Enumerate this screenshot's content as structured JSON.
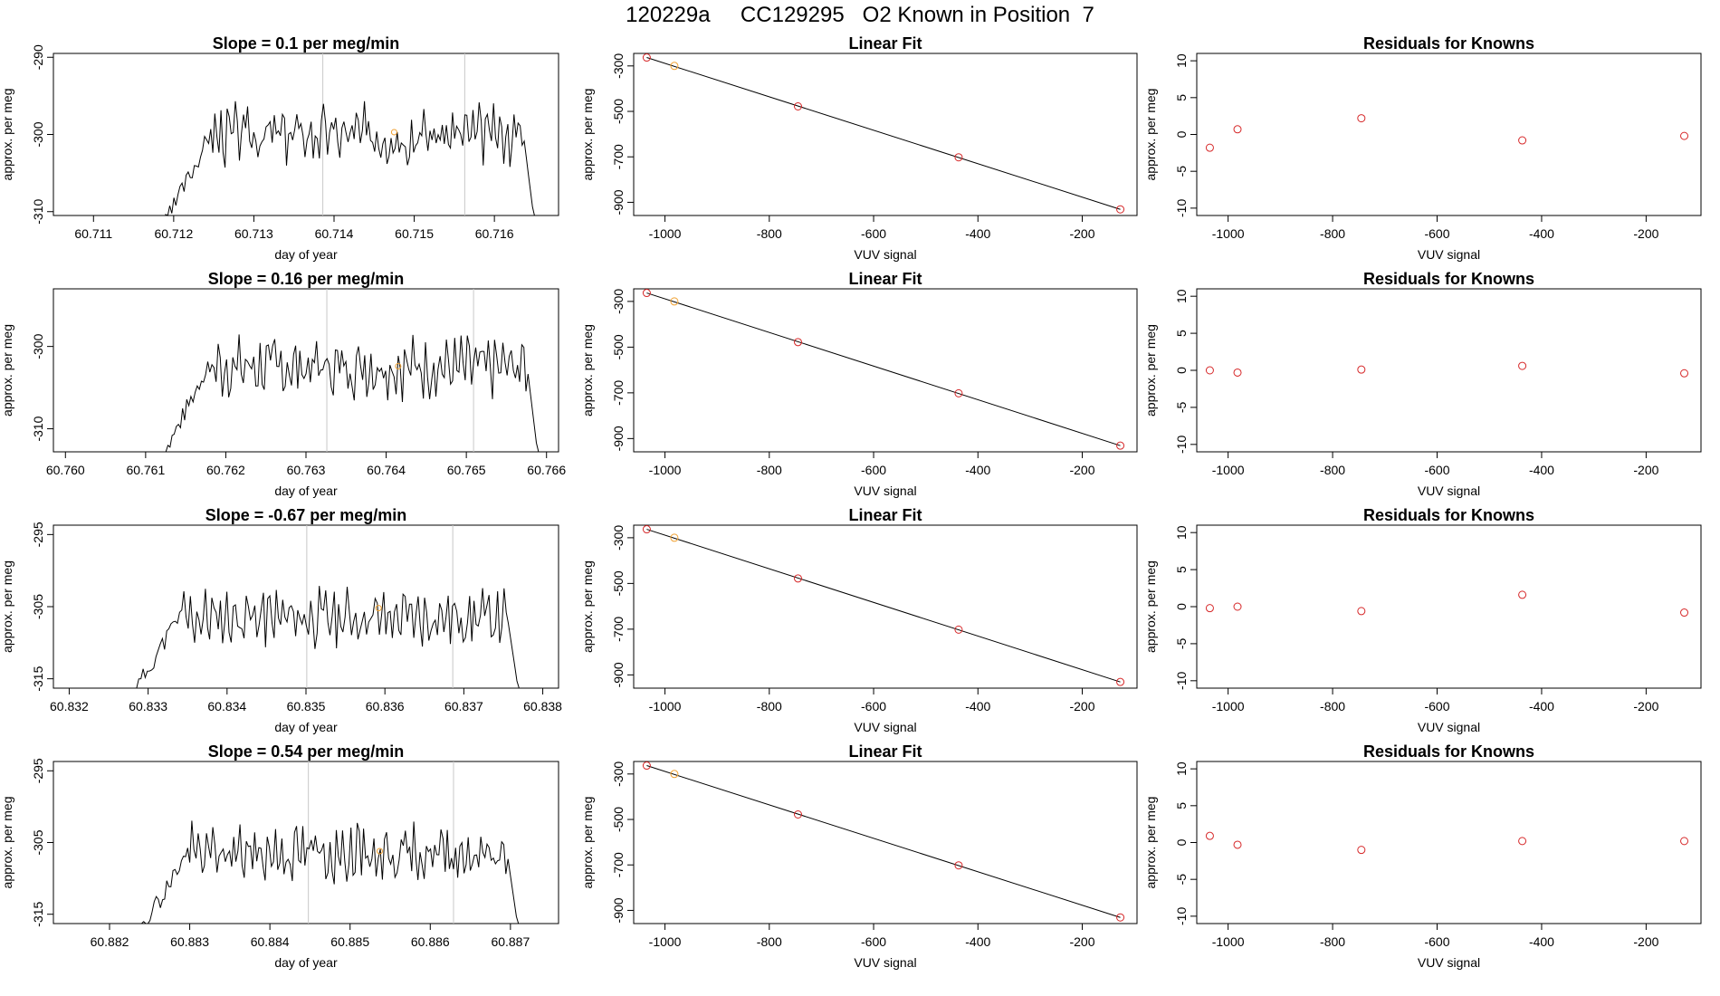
{
  "page_title": "120229a     CC129295   O2 Known in Position  7",
  "colors": {
    "trace": "#000000",
    "known_point": "#d62728",
    "highlight_point": "#f0a030",
    "vline": "#c8c8c8"
  },
  "chart_data": [
    {
      "type": "line",
      "title": "Slope =  0.1  per meg/min",
      "xlabel": "day of year",
      "ylabel": "approx. per meg",
      "xlim": [
        60.7105,
        60.7168
      ],
      "ylim": [
        -310.5,
        -289.5
      ],
      "xticks": [
        "60.711",
        "60.712",
        "60.713",
        "60.714",
        "60.715",
        "60.716"
      ],
      "yticks": [
        "-290",
        "-300",
        "-310"
      ],
      "vlines": [
        60.71386,
        60.71563
      ],
      "trace": {
        "x_start": 60.7119,
        "x_end": 60.7165,
        "base": -300,
        "amp": 2.6,
        "seed": 3
      },
      "highlight_point": {
        "x": 60.71475,
        "y": -299.7
      }
    },
    {
      "type": "scatter",
      "title": "Linear Fit",
      "xlabel": "VUV signal",
      "ylabel": "approx. per meg",
      "xlim": [
        -1060,
        -95
      ],
      "ylim": [
        -958,
        -245
      ],
      "xticks": [
        "-1000",
        "-800",
        "-600",
        "-400",
        "-200"
      ],
      "yticks": [
        "-300",
        "-500",
        "-700",
        "-900"
      ],
      "fit_line": [
        [
          -1035,
          -263
        ],
        [
          -127,
          -931
        ]
      ],
      "points": [
        {
          "x": -1035,
          "y": -263,
          "highlight": false
        },
        {
          "x": -982,
          "y": -300,
          "highlight": true
        },
        {
          "x": -745,
          "y": -478,
          "highlight": false
        },
        {
          "x": -437,
          "y": -702,
          "highlight": false
        },
        {
          "x": -127,
          "y": -931,
          "highlight": false
        }
      ]
    },
    {
      "type": "scatter",
      "title": "Residuals for Knowns",
      "xlabel": "VUV signal",
      "ylabel": "approx. per meg",
      "xlim": [
        -1060,
        -95
      ],
      "ylim": [
        -11,
        11
      ],
      "xticks": [
        "-1000",
        "-800",
        "-600",
        "-400",
        "-200"
      ],
      "yticks": [
        "-10",
        "-5",
        "0",
        "5",
        "10"
      ],
      "points": [
        {
          "x": -1035,
          "y": -1.8
        },
        {
          "x": -982,
          "y": 0.7
        },
        {
          "x": -745,
          "y": 2.2
        },
        {
          "x": -437,
          "y": -0.8
        },
        {
          "x": -127,
          "y": -0.2
        }
      ]
    },
    {
      "type": "line",
      "title": "Slope =  0.16  per meg/min",
      "xlabel": "day of year",
      "ylabel": "approx. per meg",
      "xlim": [
        60.75985,
        60.76615
      ],
      "ylim": [
        -312.8,
        -293
      ],
      "xticks": [
        "60.760",
        "60.761",
        "60.762",
        "60.763",
        "60.764",
        "60.765",
        "60.766"
      ],
      "yticks": [
        "-300",
        "-310"
      ],
      "vlines": [
        60.76326,
        60.76509
      ],
      "trace": {
        "x_start": 60.7612,
        "x_end": 60.7659,
        "base": -302.5,
        "amp": 2.4,
        "seed": 7
      },
      "highlight_point": {
        "x": 60.76415,
        "y": -302.4
      }
    },
    {
      "type": "scatter",
      "title": "Linear Fit",
      "xlabel": "VUV signal",
      "ylabel": "approx. per meg",
      "xlim": [
        -1060,
        -95
      ],
      "ylim": [
        -958,
        -245
      ],
      "xticks": [
        "-1000",
        "-800",
        "-600",
        "-400",
        "-200"
      ],
      "yticks": [
        "-300",
        "-500",
        "-700",
        "-900"
      ],
      "fit_line": [
        [
          -1035,
          -263
        ],
        [
          -127,
          -931
        ]
      ],
      "points": [
        {
          "x": -1035,
          "y": -263,
          "highlight": false
        },
        {
          "x": -982,
          "y": -300,
          "highlight": true
        },
        {
          "x": -745,
          "y": -478,
          "highlight": false
        },
        {
          "x": -437,
          "y": -702,
          "highlight": false
        },
        {
          "x": -127,
          "y": -931,
          "highlight": false
        }
      ]
    },
    {
      "type": "scatter",
      "title": "Residuals for Knowns",
      "xlabel": "VUV signal",
      "ylabel": "approx. per meg",
      "xlim": [
        -1060,
        -95
      ],
      "ylim": [
        -11,
        11
      ],
      "xticks": [
        "-1000",
        "-800",
        "-600",
        "-400",
        "-200"
      ],
      "yticks": [
        "-10",
        "-5",
        "0",
        "5",
        "10"
      ],
      "points": [
        {
          "x": -1035,
          "y": 0.0
        },
        {
          "x": -982,
          "y": -0.3
        },
        {
          "x": -745,
          "y": 0.1
        },
        {
          "x": -437,
          "y": 0.6
        },
        {
          "x": -127,
          "y": -0.4
        }
      ]
    },
    {
      "type": "line",
      "title": "Slope =  -0.67  per meg/min",
      "xlabel": "day of year",
      "ylabel": "approx. per meg",
      "xlim": [
        60.8318,
        60.8382
      ],
      "ylim": [
        -316.3,
        -293.7
      ],
      "xticks": [
        "60.832",
        "60.833",
        "60.834",
        "60.835",
        "60.836",
        "60.837",
        "60.838"
      ],
      "yticks": [
        "-295",
        "-305",
        "-315"
      ],
      "vlines": [
        60.83501,
        60.83686
      ],
      "trace": {
        "x_start": 60.8328,
        "x_end": 60.8377,
        "base": -306.5,
        "amp": 2.6,
        "seed": 11
      },
      "highlight_point": {
        "x": 60.83592,
        "y": -305.2
      }
    },
    {
      "type": "scatter",
      "title": "Linear Fit",
      "xlabel": "VUV signal",
      "ylabel": "approx. per meg",
      "xlim": [
        -1060,
        -95
      ],
      "ylim": [
        -958,
        -245
      ],
      "xticks": [
        "-1000",
        "-800",
        "-600",
        "-400",
        "-200"
      ],
      "yticks": [
        "-300",
        "-500",
        "-700",
        "-900"
      ],
      "fit_line": [
        [
          -1035,
          -263
        ],
        [
          -127,
          -931
        ]
      ],
      "points": [
        {
          "x": -1035,
          "y": -263,
          "highlight": false
        },
        {
          "x": -982,
          "y": -300,
          "highlight": true
        },
        {
          "x": -745,
          "y": -478,
          "highlight": false
        },
        {
          "x": -437,
          "y": -702,
          "highlight": false
        },
        {
          "x": -127,
          "y": -931,
          "highlight": false
        }
      ]
    },
    {
      "type": "scatter",
      "title": "Residuals for Knowns",
      "xlabel": "VUV signal",
      "ylabel": "approx. per meg",
      "xlim": [
        -1060,
        -95
      ],
      "ylim": [
        -11,
        11
      ],
      "xticks": [
        "-1000",
        "-800",
        "-600",
        "-400",
        "-200"
      ],
      "yticks": [
        "-10",
        "-5",
        "0",
        "5",
        "10"
      ],
      "points": [
        {
          "x": -1035,
          "y": -0.2
        },
        {
          "x": -982,
          "y": 0.0
        },
        {
          "x": -745,
          "y": -0.6
        },
        {
          "x": -437,
          "y": 1.6
        },
        {
          "x": -127,
          "y": -0.8
        }
      ]
    },
    {
      "type": "line",
      "title": "Slope =  0.54  per meg/min",
      "xlabel": "day of year",
      "ylabel": "approx. per meg",
      "xlim": [
        60.8813,
        60.8876
      ],
      "ylim": [
        -316.3,
        -293.7
      ],
      "xticks": [
        "60.882",
        "60.883",
        "60.884",
        "60.885",
        "60.886",
        "60.887"
      ],
      "yticks": [
        "-295",
        "-305",
        "-315"
      ],
      "vlines": [
        60.88448,
        60.88629
      ],
      "trace": {
        "x_start": 60.8824,
        "x_end": 60.8871,
        "base": -306.5,
        "amp": 2.6,
        "seed": 19
      },
      "highlight_point": {
        "x": 60.88537,
        "y": -306.2
      }
    },
    {
      "type": "scatter",
      "title": "Linear Fit",
      "xlabel": "VUV signal",
      "ylabel": "approx. per meg",
      "xlim": [
        -1060,
        -95
      ],
      "ylim": [
        -958,
        -245
      ],
      "xticks": [
        "-1000",
        "-800",
        "-600",
        "-400",
        "-200"
      ],
      "yticks": [
        "-300",
        "-500",
        "-700",
        "-900"
      ],
      "fit_line": [
        [
          -1035,
          -263
        ],
        [
          -127,
          -931
        ]
      ],
      "points": [
        {
          "x": -1035,
          "y": -263,
          "highlight": false
        },
        {
          "x": -982,
          "y": -300,
          "highlight": true
        },
        {
          "x": -745,
          "y": -478,
          "highlight": false
        },
        {
          "x": -437,
          "y": -702,
          "highlight": false
        },
        {
          "x": -127,
          "y": -931,
          "highlight": false
        }
      ]
    },
    {
      "type": "scatter",
      "title": "Residuals for Knowns",
      "xlabel": "VUV signal",
      "ylabel": "approx. per meg",
      "xlim": [
        -1060,
        -95
      ],
      "ylim": [
        -11,
        11
      ],
      "xticks": [
        "-1000",
        "-800",
        "-600",
        "-400",
        "-200"
      ],
      "yticks": [
        "-10",
        "-5",
        "0",
        "5",
        "10"
      ],
      "points": [
        {
          "x": -1035,
          "y": 0.9
        },
        {
          "x": -982,
          "y": -0.3
        },
        {
          "x": -745,
          "y": -1.0
        },
        {
          "x": -437,
          "y": 0.2
        },
        {
          "x": -127,
          "y": 0.2
        }
      ]
    }
  ]
}
